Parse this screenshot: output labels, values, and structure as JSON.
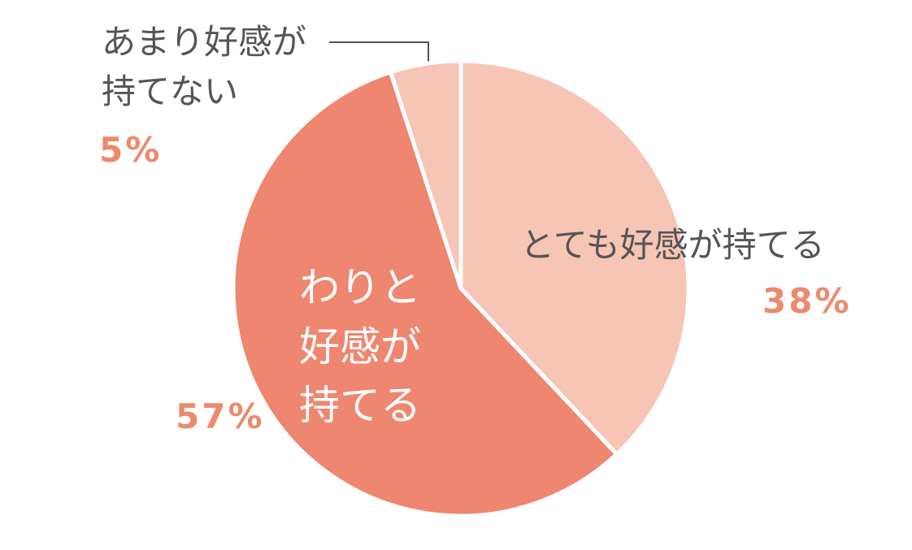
{
  "chart_data": {
    "type": "pie",
    "categories": [
      "とても好感が持てる",
      "わりと好感が持てる",
      "あまり好感が持てない"
    ],
    "values": [
      38,
      57,
      5
    ],
    "value_labels": [
      "38%",
      "57%",
      "5%"
    ],
    "colors": [
      "#f7c5b5",
      "#ef8670",
      "#f7c5b5"
    ]
  }
}
